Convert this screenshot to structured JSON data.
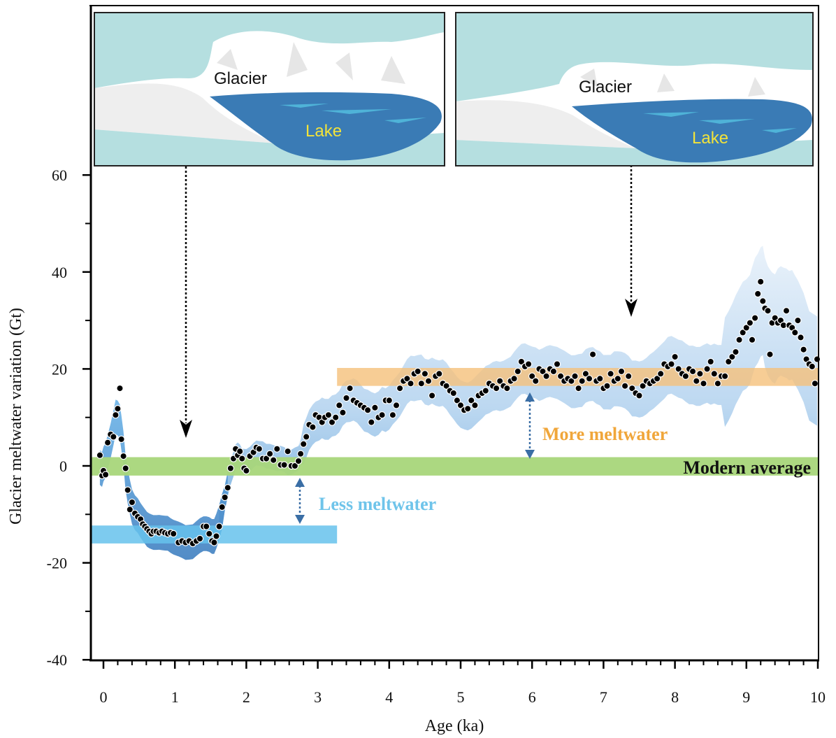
{
  "chart_data": {
    "type": "scatter",
    "xlabel": "Age (ka)",
    "ylabel": "Glacier meltwater variation (Gt)",
    "xlim": [
      -0.18,
      10
    ],
    "ylim": [
      -40,
      60
    ],
    "x_ticks": [
      "0",
      "1",
      "2",
      "3",
      "4",
      "5",
      "6",
      "7",
      "8",
      "9",
      "10"
    ],
    "y_ticks": [
      "60",
      "40",
      "20",
      "0",
      "-20",
      "-40"
    ],
    "series": [
      {
        "points": [
          [
            -0.05,
            2.2
          ],
          [
            -0.02,
            -2.0
          ],
          [
            0.0,
            -1.0
          ],
          [
            0.03,
            -1.8
          ],
          [
            0.06,
            4.8
          ],
          [
            0.1,
            6.5
          ],
          [
            0.14,
            6.0
          ],
          [
            0.17,
            10.5
          ],
          [
            0.2,
            11.8
          ],
          [
            0.23,
            16.0
          ],
          [
            0.25,
            5.5
          ],
          [
            0.28,
            2.0
          ],
          [
            0.31,
            -0.5
          ],
          [
            0.34,
            -5.0
          ],
          [
            0.37,
            -9.0
          ],
          [
            0.4,
            -7.5
          ],
          [
            0.44,
            -9.8
          ],
          [
            0.48,
            -10.5
          ],
          [
            0.52,
            -11.0
          ],
          [
            0.55,
            -12.0
          ],
          [
            0.58,
            -12.5
          ],
          [
            0.61,
            -13.0
          ],
          [
            0.64,
            -13.5
          ],
          [
            0.67,
            -14.0
          ],
          [
            0.7,
            -13.5
          ],
          [
            0.74,
            -13.5
          ],
          [
            0.78,
            -13.8
          ],
          [
            0.82,
            -13.5
          ],
          [
            0.86,
            -13.8
          ],
          [
            0.9,
            -14.0
          ],
          [
            0.94,
            -13.8
          ],
          [
            0.98,
            -14.0
          ],
          [
            1.05,
            -15.8
          ],
          [
            1.1,
            -15.5
          ],
          [
            1.15,
            -15.8
          ],
          [
            1.2,
            -15.5
          ],
          [
            1.25,
            -16.0
          ],
          [
            1.3,
            -15.5
          ],
          [
            1.35,
            -15.0
          ],
          [
            1.4,
            -12.5
          ],
          [
            1.44,
            -12.5
          ],
          [
            1.48,
            -14.0
          ],
          [
            1.52,
            -15.5
          ],
          [
            1.55,
            -15.8
          ],
          [
            1.58,
            -14.5
          ],
          [
            1.62,
            -12.5
          ],
          [
            1.66,
            -8.5
          ],
          [
            1.7,
            -6.5
          ],
          [
            1.74,
            -4.5
          ],
          [
            1.78,
            -0.5
          ],
          [
            1.82,
            1.5
          ],
          [
            1.85,
            3.5
          ],
          [
            1.88,
            2.2
          ],
          [
            1.91,
            3.0
          ],
          [
            1.94,
            1.5
          ],
          [
            1.97,
            -0.5
          ],
          [
            2.0,
            -1.0
          ],
          [
            2.05,
            2.0
          ],
          [
            2.1,
            2.8
          ],
          [
            2.14,
            3.8
          ],
          [
            2.18,
            3.5
          ],
          [
            2.23,
            1.5
          ],
          [
            2.28,
            1.5
          ],
          [
            2.33,
            2.5
          ],
          [
            2.38,
            1.2
          ],
          [
            2.43,
            3.5
          ],
          [
            2.48,
            0.2
          ],
          [
            2.53,
            0.2
          ],
          [
            2.58,
            3.0
          ],
          [
            2.63,
            0.0
          ],
          [
            2.68,
            0.0
          ],
          [
            2.73,
            1.0
          ],
          [
            2.76,
            2.5
          ],
          [
            2.8,
            4.5
          ],
          [
            2.84,
            6.0
          ],
          [
            2.88,
            8.5
          ],
          [
            2.93,
            8.0
          ],
          [
            2.97,
            10.5
          ],
          [
            3.02,
            10.0
          ],
          [
            3.06,
            9.0
          ],
          [
            3.1,
            10.0
          ],
          [
            3.15,
            10.5
          ],
          [
            3.2,
            9.0
          ],
          [
            3.25,
            10.0
          ],
          [
            3.3,
            12.5
          ],
          [
            3.35,
            11.0
          ],
          [
            3.4,
            14.0
          ],
          [
            3.45,
            16.0
          ],
          [
            3.5,
            13.5
          ],
          [
            3.55,
            13.0
          ],
          [
            3.6,
            12.5
          ],
          [
            3.65,
            12.0
          ],
          [
            3.7,
            11.5
          ],
          [
            3.75,
            9.0
          ],
          [
            3.8,
            12.0
          ],
          [
            3.85,
            10.0
          ],
          [
            3.9,
            10.5
          ],
          [
            3.95,
            13.5
          ],
          [
            4.0,
            13.5
          ],
          [
            4.05,
            10.5
          ],
          [
            4.1,
            12.5
          ],
          [
            4.15,
            16.0
          ],
          [
            4.2,
            17.5
          ],
          [
            4.25,
            18.0
          ],
          [
            4.3,
            17.0
          ],
          [
            4.35,
            19.0
          ],
          [
            4.4,
            19.5
          ],
          [
            4.45,
            17.0
          ],
          [
            4.5,
            19.0
          ],
          [
            4.55,
            17.5
          ],
          [
            4.6,
            14.5
          ],
          [
            4.65,
            18.5
          ],
          [
            4.7,
            19.0
          ],
          [
            4.75,
            17.0
          ],
          [
            4.8,
            16.5
          ],
          [
            4.85,
            15.5
          ],
          [
            4.9,
            15.0
          ],
          [
            4.95,
            13.5
          ],
          [
            5.0,
            12.5
          ],
          [
            5.05,
            11.5
          ],
          [
            5.1,
            11.8
          ],
          [
            5.15,
            13.5
          ],
          [
            5.2,
            12.5
          ],
          [
            5.25,
            14.5
          ],
          [
            5.3,
            15.0
          ],
          [
            5.35,
            15.5
          ],
          [
            5.4,
            17.0
          ],
          [
            5.45,
            16.5
          ],
          [
            5.5,
            16.0
          ],
          [
            5.55,
            17.5
          ],
          [
            5.6,
            16.5
          ],
          [
            5.65,
            16.0
          ],
          [
            5.7,
            17.5
          ],
          [
            5.75,
            18.0
          ],
          [
            5.8,
            19.5
          ],
          [
            5.85,
            21.5
          ],
          [
            5.9,
            20.5
          ],
          [
            5.95,
            21.0
          ],
          [
            6.0,
            18.5
          ],
          [
            6.05,
            17.5
          ],
          [
            6.1,
            20.0
          ],
          [
            6.15,
            19.5
          ],
          [
            6.2,
            18.5
          ],
          [
            6.25,
            20.0
          ],
          [
            6.3,
            19.5
          ],
          [
            6.35,
            21.0
          ],
          [
            6.4,
            18.5
          ],
          [
            6.45,
            17.5
          ],
          [
            6.5,
            18.0
          ],
          [
            6.55,
            17.5
          ],
          [
            6.6,
            18.5
          ],
          [
            6.65,
            16.0
          ],
          [
            6.7,
            17.5
          ],
          [
            6.75,
            19.0
          ],
          [
            6.8,
            18.0
          ],
          [
            6.85,
            23.0
          ],
          [
            6.9,
            17.5
          ],
          [
            6.95,
            18.0
          ],
          [
            7.0,
            16.0
          ],
          [
            7.05,
            16.5
          ],
          [
            7.1,
            19.0
          ],
          [
            7.15,
            17.5
          ],
          [
            7.2,
            18.0
          ],
          [
            7.25,
            19.5
          ],
          [
            7.3,
            16.5
          ],
          [
            7.35,
            18.5
          ],
          [
            7.4,
            16.0
          ],
          [
            7.45,
            15.0
          ],
          [
            7.5,
            14.5
          ],
          [
            7.55,
            16.5
          ],
          [
            7.6,
            17.5
          ],
          [
            7.65,
            17.0
          ],
          [
            7.7,
            17.5
          ],
          [
            7.75,
            18.0
          ],
          [
            7.8,
            19.0
          ],
          [
            7.85,
            21.0
          ],
          [
            7.9,
            20.5
          ],
          [
            7.95,
            21.0
          ],
          [
            8.0,
            22.5
          ],
          [
            8.05,
            20.0
          ],
          [
            8.1,
            19.0
          ],
          [
            8.15,
            18.5
          ],
          [
            8.2,
            20.0
          ],
          [
            8.25,
            19.5
          ],
          [
            8.3,
            17.5
          ],
          [
            8.35,
            19.0
          ],
          [
            8.4,
            17.0
          ],
          [
            8.45,
            20.0
          ],
          [
            8.5,
            21.5
          ],
          [
            8.55,
            19.0
          ],
          [
            8.6,
            17.0
          ],
          [
            8.65,
            18.5
          ],
          [
            8.7,
            18.5
          ],
          [
            8.75,
            21.5
          ],
          [
            8.8,
            22.5
          ],
          [
            8.85,
            23.5
          ],
          [
            8.9,
            26.0
          ],
          [
            8.95,
            27.5
          ],
          [
            9.0,
            28.5
          ],
          [
            9.05,
            29.5
          ],
          [
            9.08,
            26.0
          ],
          [
            9.12,
            30.5
          ],
          [
            9.16,
            35.5
          ],
          [
            9.2,
            38.0
          ],
          [
            9.23,
            34.0
          ],
          [
            9.26,
            32.5
          ],
          [
            9.3,
            32.0
          ],
          [
            9.33,
            23.0
          ],
          [
            9.36,
            29.5
          ],
          [
            9.4,
            30.5
          ],
          [
            9.44,
            29.5
          ],
          [
            9.48,
            30.0
          ],
          [
            9.52,
            29.0
          ],
          [
            9.56,
            32.0
          ],
          [
            9.6,
            29.0
          ],
          [
            9.64,
            28.5
          ],
          [
            9.68,
            27.5
          ],
          [
            9.72,
            30.0
          ],
          [
            9.76,
            26.5
          ],
          [
            9.8,
            24.0
          ],
          [
            9.84,
            22.0
          ],
          [
            9.88,
            21.0
          ],
          [
            9.92,
            20.5
          ],
          [
            9.96,
            17.0
          ],
          [
            9.99,
            22.0
          ]
        ]
      }
    ],
    "annotations": {
      "modern_average": "Modern average",
      "more_meltwater": "More meltwater",
      "less_meltwater": "Less meltwater"
    },
    "insets": [
      {
        "glacier": "Glacier",
        "lake": "Lake"
      },
      {
        "glacier": "Glacier",
        "lake": "Lake"
      }
    ],
    "grid": false,
    "colors": {
      "envelope": "#6aa8dc",
      "modern_band": "#a8d67a",
      "more_band": "#f5c07a",
      "less_band": "#66c2ec",
      "more_text": "#f0a63a",
      "less_text": "#6fc4ea",
      "lake": "#3a7bb5",
      "sky": "#b5dfe0",
      "label_yellow": "#f2e33a"
    }
  }
}
